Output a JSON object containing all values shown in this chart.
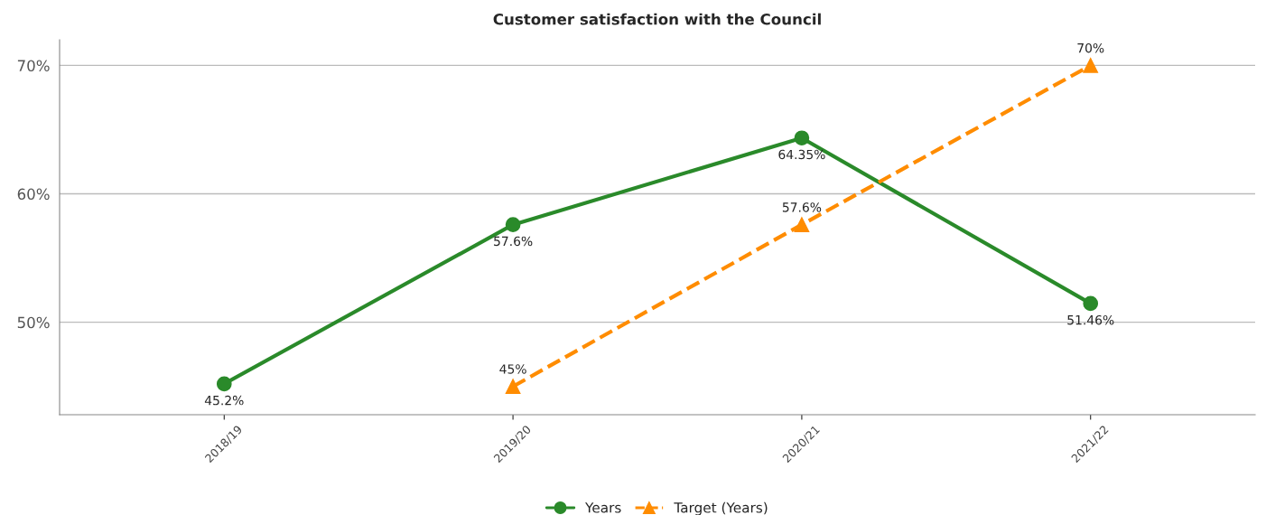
{
  "chart_data": {
    "type": "line",
    "title": "Customer satisfaction with the Council",
    "categories": [
      "2018/19",
      "2019/20",
      "2020/21",
      "2021/22"
    ],
    "series": [
      {
        "name": "Years",
        "color": "#2a8a2a",
        "values": [
          45.2,
          57.6,
          64.35,
          51.46
        ],
        "value_labels": [
          "45.2%",
          "57.6%",
          "64.35%",
          "51.46%"
        ],
        "marker": "circle",
        "line_style": "solid"
      },
      {
        "name": "Target (Years)",
        "color": "#ff8c00",
        "values": [
          null,
          45,
          57.6,
          70
        ],
        "value_labels": [
          null,
          "45%",
          "57.6%",
          "70%"
        ],
        "marker": "triangle",
        "line_style": "dashed"
      }
    ],
    "ylim": [
      42.8,
      72
    ],
    "yticks": [
      {
        "value": 50,
        "label": "50%"
      },
      {
        "value": 60,
        "label": "60%"
      },
      {
        "value": 70,
        "label": "70%"
      }
    ],
    "grid": "y",
    "legend": "bottom"
  }
}
